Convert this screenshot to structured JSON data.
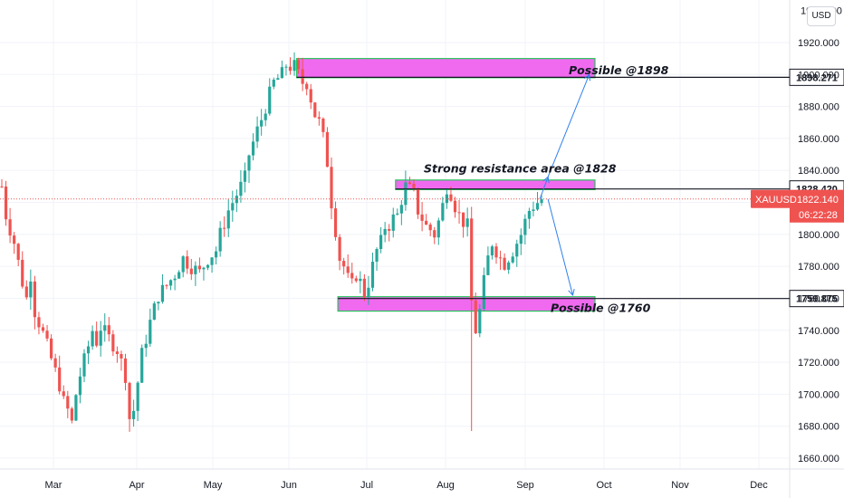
{
  "chart_data": {
    "type": "candlestick",
    "symbol": "XAUUSD",
    "currency": "USD",
    "last_price": "1822.140",
    "countdown": "06:22:28",
    "ylim": [
      1655,
      1940
    ],
    "y_ticks": [
      "1660.000",
      "1680.000",
      "1700.000",
      "1720.000",
      "1740.000",
      "1760.000",
      "1780.000",
      "1800.000",
      "1820.000",
      "1840.000",
      "1860.000",
      "1880.000",
      "1900.000",
      "1920.000"
    ],
    "y_top_partial": "1940.000",
    "x_months": [
      "Mar",
      "Apr",
      "May",
      "Jun",
      "Jul",
      "Aug",
      "Sep",
      "Oct",
      "Nov",
      "Dec"
    ],
    "price_path": [
      [
        0,
        1830
      ],
      [
        1,
        1812
      ],
      [
        3,
        1795
      ],
      [
        5,
        1770
      ],
      [
        6,
        1760
      ],
      [
        7,
        1775
      ],
      [
        8,
        1752
      ],
      [
        10,
        1738
      ],
      [
        12,
        1722
      ],
      [
        14,
        1706
      ],
      [
        15,
        1695
      ],
      [
        16,
        1690
      ],
      [
        17,
        1682
      ],
      [
        18,
        1700
      ],
      [
        19,
        1712
      ],
      [
        21,
        1730
      ],
      [
        22,
        1740
      ],
      [
        23,
        1733
      ],
      [
        24,
        1742
      ],
      [
        26,
        1735
      ],
      [
        28,
        1728
      ],
      [
        29,
        1720
      ],
      [
        30,
        1712
      ],
      [
        31,
        1685
      ],
      [
        32,
        1690
      ],
      [
        34,
        1725
      ],
      [
        36,
        1745
      ],
      [
        38,
        1762
      ],
      [
        40,
        1768
      ],
      [
        42,
        1775
      ],
      [
        44,
        1785
      ],
      [
        46,
        1780
      ],
      [
        48,
        1776
      ],
      [
        50,
        1785
      ],
      [
        52,
        1790
      ],
      [
        53,
        1800
      ],
      [
        55,
        1815
      ],
      [
        57,
        1825
      ],
      [
        59,
        1835
      ],
      [
        60,
        1850
      ],
      [
        62,
        1865
      ],
      [
        63,
        1872
      ],
      [
        64,
        1880
      ],
      [
        66,
        1895
      ],
      [
        68,
        1900
      ],
      [
        69,
        1906
      ],
      [
        70,
        1905
      ],
      [
        71,
        1905
      ],
      [
        72,
        1900
      ],
      [
        73,
        1895
      ],
      [
        74,
        1895
      ],
      [
        75,
        1885
      ],
      [
        76,
        1875
      ],
      [
        77,
        1870
      ],
      [
        78,
        1860
      ],
      [
        79,
        1845
      ],
      [
        80,
        1820
      ],
      [
        81,
        1803
      ],
      [
        82,
        1785
      ],
      [
        83,
        1780
      ],
      [
        84,
        1772
      ],
      [
        85,
        1768
      ],
      [
        86,
        1775
      ],
      [
        87,
        1770
      ],
      [
        88,
        1763
      ],
      [
        89,
        1770
      ],
      [
        90,
        1780
      ],
      [
        91,
        1790
      ],
      [
        92,
        1795
      ],
      [
        93,
        1805
      ],
      [
        94,
        1806
      ],
      [
        95,
        1810
      ],
      [
        96,
        1812
      ],
      [
        97,
        1822
      ],
      [
        98,
        1830
      ],
      [
        99,
        1828
      ],
      [
        100,
        1825
      ],
      [
        101,
        1815
      ],
      [
        102,
        1810
      ],
      [
        103,
        1805
      ],
      [
        104,
        1803
      ],
      [
        105,
        1800
      ],
      [
        106,
        1808
      ],
      [
        107,
        1818
      ],
      [
        108,
        1830
      ],
      [
        109,
        1826
      ],
      [
        110,
        1818
      ],
      [
        111,
        1812
      ],
      [
        112,
        1808
      ],
      [
        113,
        1805
      ],
      [
        114,
        1758
      ],
      [
        115,
        1740
      ],
      [
        116,
        1752
      ],
      [
        117,
        1770
      ],
      [
        118,
        1785
      ],
      [
        119,
        1795
      ],
      [
        120,
        1790
      ],
      [
        121,
        1785
      ],
      [
        122,
        1782
      ],
      [
        123,
        1786
      ],
      [
        124,
        1790
      ],
      [
        125,
        1795
      ],
      [
        126,
        1800
      ],
      [
        127,
        1808
      ],
      [
        128,
        1815
      ],
      [
        129,
        1818
      ],
      [
        130,
        1820
      ],
      [
        131,
        1822
      ]
    ],
    "spike_low": {
      "i": 114,
      "low": 1677
    },
    "zones": [
      {
        "label": "Possible @1898",
        "from": 1898,
        "to": 1910,
        "i_start": 72,
        "i_end": 146
      },
      {
        "label": "Strong resistance area @1828",
        "from": 1828,
        "to": 1834,
        "i_start": 96,
        "i_end": 146
      },
      {
        "label": "Possible @1760",
        "from": 1752,
        "to": 1761,
        "i_start": 82,
        "i_end": 146
      }
    ],
    "levels": [
      {
        "value": 1898.271,
        "label": "1898.271"
      },
      {
        "value": 1828.42,
        "label": "1828.420"
      },
      {
        "value": 1759.875,
        "label": "1759.875"
      }
    ],
    "projection_arrows": [
      {
        "from_i": 131,
        "from_v": 1822,
        "mid_i": 133,
        "mid_v": 1836,
        "to_i": 143,
        "to_v": 1900
      },
      {
        "from_i": 133,
        "from_v": 1822,
        "to_i": 139,
        "to_v": 1762
      }
    ],
    "colors": {
      "up": "#26a69a",
      "down": "#ef5350",
      "zone_fill": "#f06af0",
      "zone_border": "#27c45a",
      "arrow": "#2f80ed",
      "price_badge": "#ef5350"
    }
  }
}
